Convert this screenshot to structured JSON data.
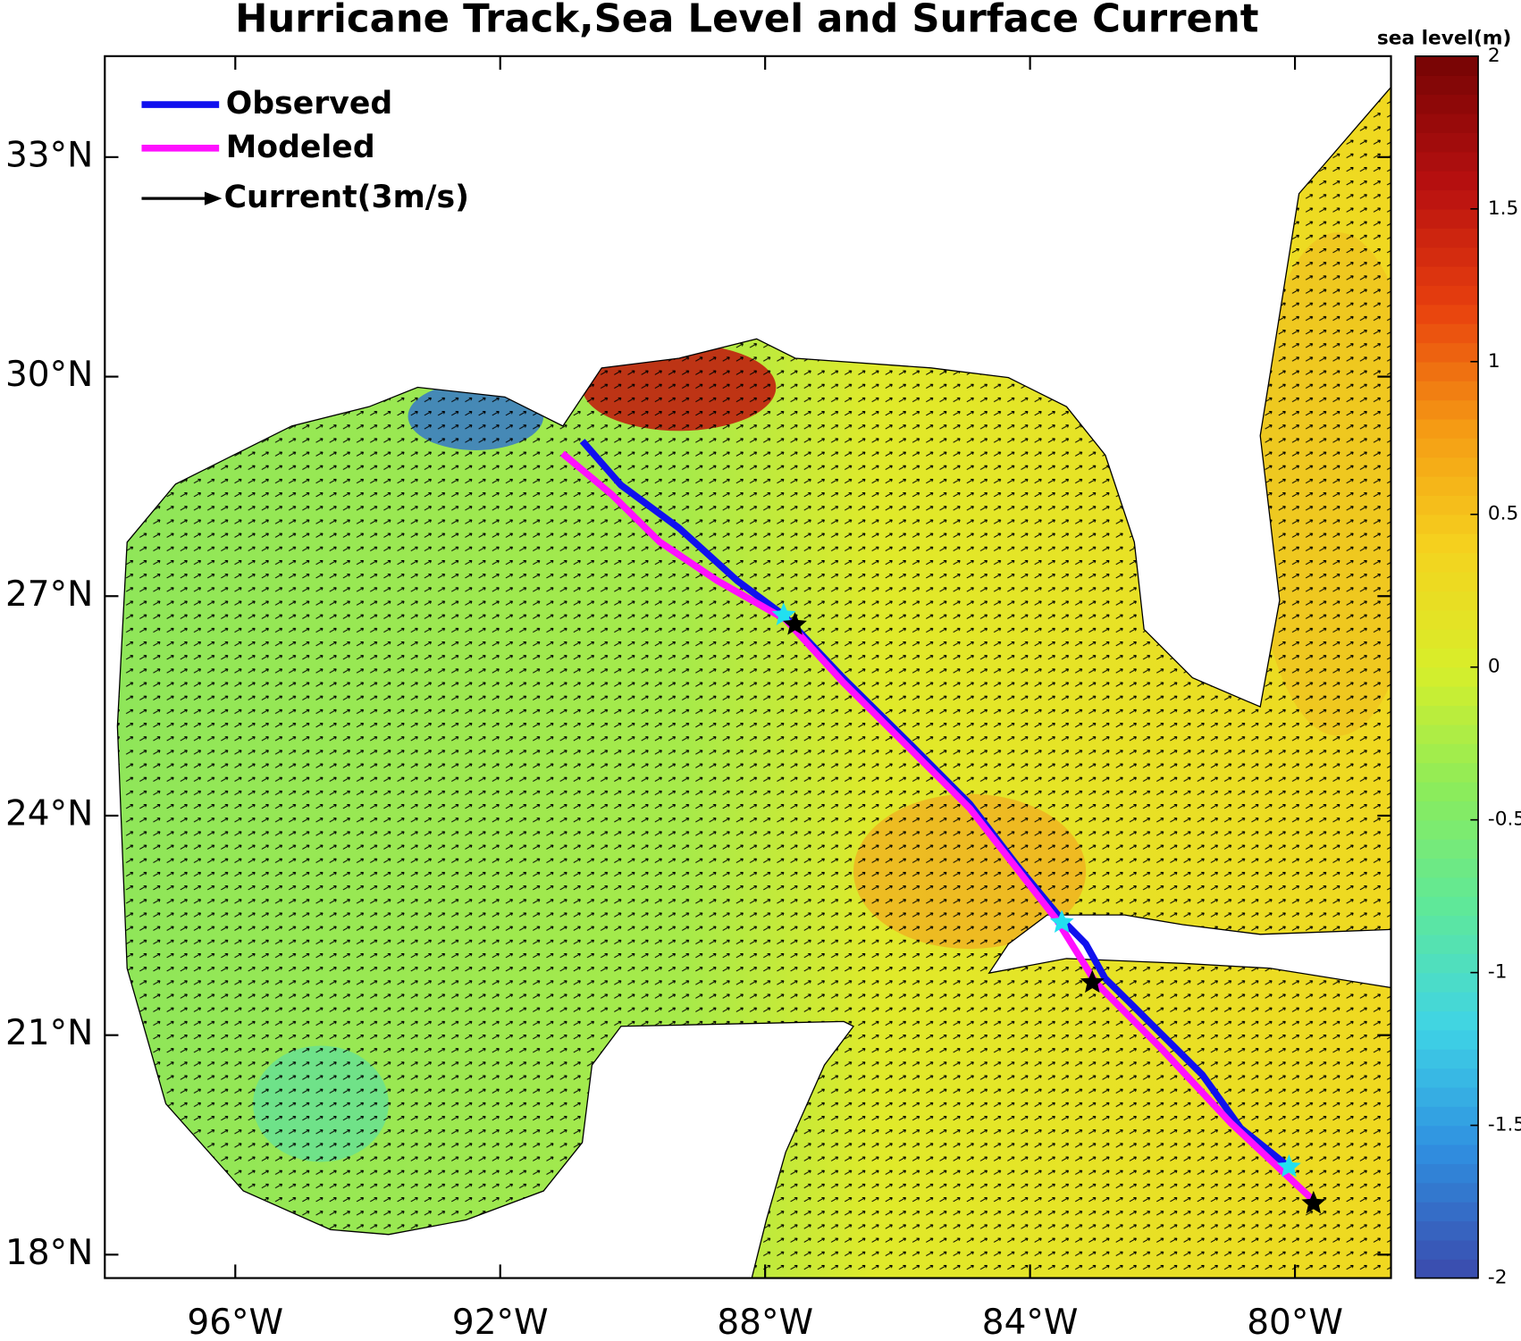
{
  "chart_data": {
    "type": "map",
    "title": "Hurricane Track,Sea Level and Surface Current",
    "xlim": [
      -97.97,
      -78.55
    ],
    "ylim": [
      17.68,
      34.38
    ],
    "xticks": [
      {
        "value": -96,
        "label": "96°W"
      },
      {
        "value": -92,
        "label": "92°W"
      },
      {
        "value": -88,
        "label": "88°W"
      },
      {
        "value": -84,
        "label": "84°W"
      },
      {
        "value": -80,
        "label": "80°W"
      }
    ],
    "yticks": [
      {
        "value": 18,
        "label": "18°N"
      },
      {
        "value": 21,
        "label": "21°N"
      },
      {
        "value": 24,
        "label": "24°N"
      },
      {
        "value": 27,
        "label": "27°N"
      },
      {
        "value": 30,
        "label": "30°N"
      },
      {
        "value": 33,
        "label": "33°N"
      }
    ],
    "series": [
      {
        "name": "Observed",
        "color": "#1010ee",
        "x": [
          -90.76,
          -90.18,
          -89.3,
          -88.42,
          -87.72,
          -86.82,
          -85.79,
          -84.91,
          -84.18,
          -83.52,
          -83.16,
          -82.87,
          -82.5,
          -81.99,
          -81.4,
          -80.82,
          -80.09
        ],
        "y": [
          29.12,
          28.52,
          27.93,
          27.21,
          26.74,
          25.88,
          24.96,
          24.16,
          23.3,
          22.58,
          22.25,
          21.78,
          21.45,
          20.99,
          20.46,
          19.73,
          19.2
        ],
        "markers": {
          "color": "#22e0f0",
          "x": [
            -87.72,
            -83.52,
            -80.09
          ],
          "y": [
            26.74,
            22.54,
            19.2
          ]
        }
      },
      {
        "name": "Modeled",
        "color": "#ff10ff",
        "x": [
          -91.06,
          -90.33,
          -89.59,
          -88.72,
          -87.69,
          -86.82,
          -84.91,
          -83.6,
          -83.01,
          -81.99,
          -80.97,
          -79.72
        ],
        "y": [
          28.95,
          28.4,
          27.74,
          27.21,
          26.68,
          25.82,
          24.1,
          22.58,
          21.72,
          20.79,
          19.8,
          18.74
        ],
        "markers": {
          "color": "#000000",
          "x": [
            -87.55,
            -83.06,
            -79.72
          ],
          "y": [
            26.61,
            21.72,
            18.7
          ]
        }
      }
    ],
    "vector_legend": {
      "label": "Current(3m/s)"
    },
    "colorbar": {
      "label": "sea level(m)",
      "lim": [
        -2,
        2
      ],
      "ticks": [
        -2,
        -1.5,
        -1,
        -0.5,
        0,
        0.5,
        1,
        1.5,
        2
      ],
      "colormap": [
        "#3a4fb0",
        "#2f8fe0",
        "#3fd4e6",
        "#5ee89a",
        "#8cec5a",
        "#d8ee2a",
        "#f5d21e",
        "#f59a14",
        "#e8400e",
        "#b81010",
        "#7a0505"
      ]
    }
  }
}
